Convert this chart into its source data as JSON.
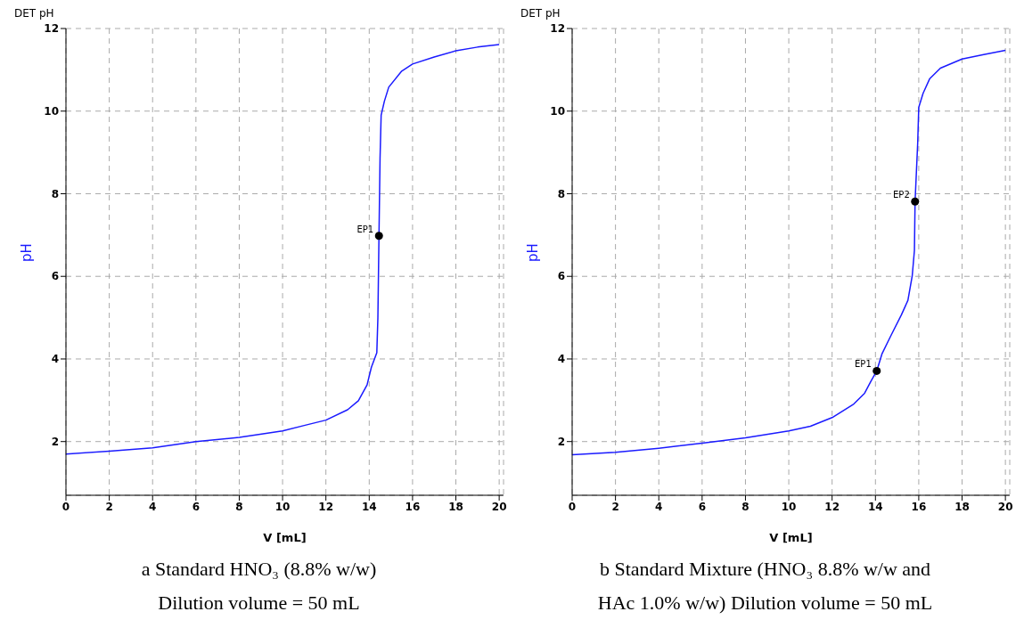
{
  "chart_data": [
    {
      "type": "line",
      "title": "a  Standard HNO₃ (8.8% w/w)",
      "subtitle": "Dilution volume = 50 mL",
      "xlabel": "V [mL]",
      "ylabel": "pH",
      "annotations": [
        "DET pH",
        {
          "text": "EP1",
          "x": 14.45,
          "y": 6.98
        }
      ],
      "xlim": [
        0,
        20.2
      ],
      "ylim": [
        0.7,
        12
      ],
      "xticks": [
        0,
        2,
        4,
        6,
        8,
        10,
        12,
        14,
        16,
        18,
        20
      ],
      "yticks": [
        2,
        4,
        6,
        8,
        10,
        12
      ],
      "grid": true,
      "series": [
        {
          "color": "#1a1aff",
          "marker": "none",
          "x": [
            0,
            2,
            4,
            6,
            8,
            10,
            11,
            12,
            13,
            13.5,
            13.9,
            14.1,
            14.35,
            14.4,
            14.45,
            14.5,
            14.55,
            14.7,
            14.9,
            15.5,
            16,
            17,
            18,
            19,
            20
          ],
          "values": [
            1.7,
            1.77,
            1.85,
            2.0,
            2.1,
            2.26,
            2.39,
            2.52,
            2.77,
            2.99,
            3.37,
            3.8,
            4.15,
            5.0,
            6.98,
            8.87,
            9.9,
            10.24,
            10.58,
            10.97,
            11.14,
            11.31,
            11.46,
            11.55,
            11.61
          ]
        },
        {
          "type": "scatter",
          "color": "#000000",
          "marker": "circle",
          "x": [
            14.45
          ],
          "values": [
            6.98
          ]
        }
      ]
    },
    {
      "type": "line",
      "title": "b  Standard Mixture (HNO₃ 8.8% w/w and",
      "subtitle": "HAc 1.0% w/w) Dilution volume = 50 mL",
      "xlabel": "V [mL]",
      "ylabel": "pH",
      "annotations": [
        "DET pH",
        {
          "text": "EP1",
          "x": 14.06,
          "y": 3.71
        },
        {
          "text": "EP2",
          "x": 15.83,
          "y": 7.81
        }
      ],
      "xlim": [
        0,
        20.2
      ],
      "ylim": [
        0.7,
        12
      ],
      "xticks": [
        0,
        2,
        4,
        6,
        8,
        10,
        12,
        14,
        16,
        18,
        20
      ],
      "yticks": [
        2,
        4,
        6,
        8,
        10,
        12
      ],
      "grid": true,
      "series": [
        {
          "color": "#1a1aff",
          "marker": "none",
          "x": [
            0,
            2,
            4,
            6,
            8,
            10,
            11,
            12,
            13,
            13.5,
            13.8,
            14.06,
            14.3,
            14.7,
            15.2,
            15.5,
            15.7,
            15.8,
            15.83,
            15.95,
            16.0,
            16.2,
            16.5,
            17,
            18,
            19,
            20
          ],
          "values": [
            1.68,
            1.74,
            1.84,
            1.96,
            2.09,
            2.26,
            2.37,
            2.58,
            2.91,
            3.17,
            3.47,
            3.71,
            4.12,
            4.55,
            5.07,
            5.42,
            6.02,
            6.63,
            7.81,
            9.22,
            10.09,
            10.43,
            10.78,
            11.04,
            11.26,
            11.37,
            11.47
          ]
        },
        {
          "type": "scatter",
          "color": "#000000",
          "marker": "circle",
          "x": [
            14.06,
            15.83
          ],
          "values": [
            3.71,
            7.81
          ]
        }
      ]
    }
  ]
}
